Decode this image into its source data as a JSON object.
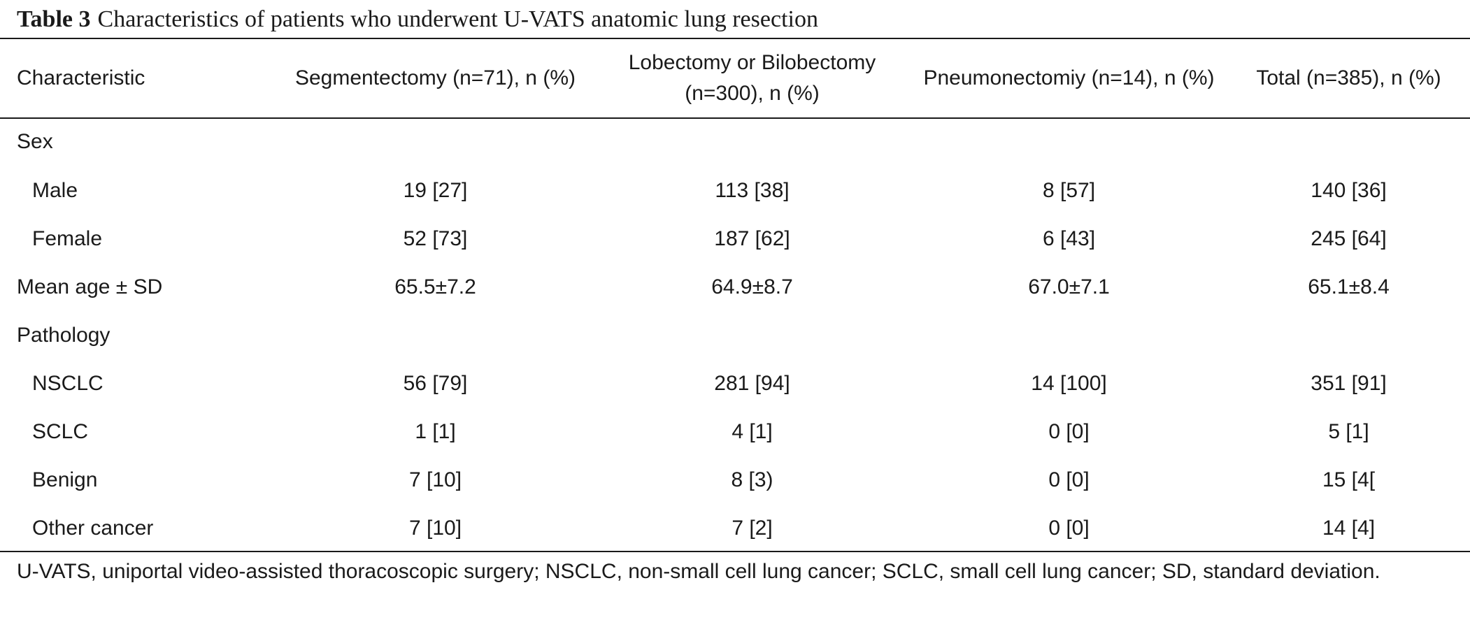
{
  "caption": {
    "label": "Table 3",
    "text": "Characteristics of patients who underwent U-VATS anatomic lung resection"
  },
  "table": {
    "headers": [
      "Characteristic",
      "Segmentectomy (n=71), n (%)",
      "Lobectomy or Bilobectomy (n=300), n (%)",
      "Pneumonectomiy (n=14), n (%)",
      "Total (n=385), n (%)"
    ],
    "rows": [
      {
        "label": "Sex",
        "values": [
          "",
          "",
          "",
          ""
        ]
      },
      {
        "label": "Male",
        "values": [
          "19 [27]",
          "113 [38]",
          "8 [57]",
          "140 [36]"
        ]
      },
      {
        "label": "Female",
        "values": [
          "52 [73]",
          "187 [62]",
          "6 [43]",
          "245 [64]"
        ]
      },
      {
        "label": "Mean age ± SD",
        "values": [
          "65.5±7.2",
          "64.9±8.7",
          "67.0±7.1",
          "65.1±8.4"
        ]
      },
      {
        "label": "Pathology",
        "values": [
          "",
          "",
          "",
          ""
        ]
      },
      {
        "label": "NSCLC",
        "values": [
          "56 [79]",
          "281 [94]",
          "14 [100]",
          "351 [91]"
        ]
      },
      {
        "label": "SCLC",
        "values": [
          "1 [1]",
          "4 [1]",
          "0 [0]",
          "5 [1]"
        ]
      },
      {
        "label": "Benign",
        "values": [
          "7 [10]",
          "8 [3)",
          "0 [0]",
          "15 [4["
        ]
      },
      {
        "label": "Other cancer",
        "values": [
          "7 [10]",
          "7 [2]",
          "0 [0]",
          "14 [4]"
        ]
      }
    ]
  },
  "footnote": "U-VATS, uniportal video-assisted thoracoscopic surgery; NSCLC, non-small cell lung cancer; SCLC, small cell lung cancer; SD, standard deviation."
}
